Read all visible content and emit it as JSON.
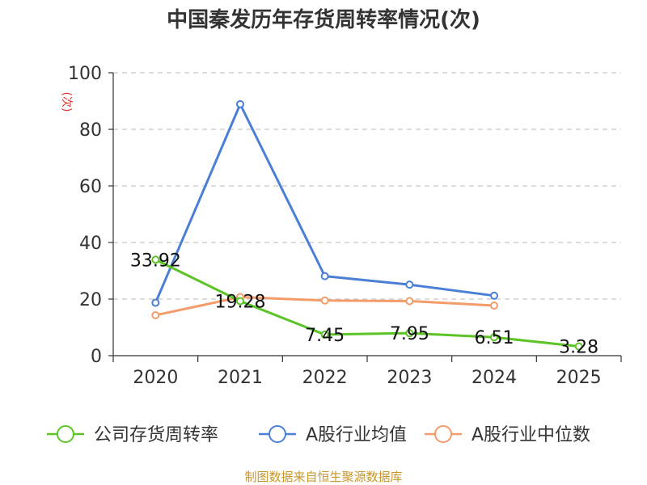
{
  "chart_data": {
    "type": "line",
    "title": "中国秦发历年存货周转率情况(次)",
    "ylabel": "(次)",
    "categories": [
      "2020",
      "2021",
      "2022",
      "2023",
      "2024",
      "2025"
    ],
    "ylim": [
      0,
      100
    ],
    "yticks": [
      0,
      20,
      40,
      60,
      80,
      100
    ],
    "grid": true,
    "legend_position": "bottom",
    "series": [
      {
        "name": "公司存货周转率",
        "color": "#5cc427",
        "values": [
          33.92,
          19.28,
          7.45,
          7.95,
          6.51,
          3.28
        ],
        "labels": [
          "33.92",
          "19.28",
          "7.45",
          "7.95",
          "6.51",
          "3.28"
        ]
      },
      {
        "name": "A股行业均值",
        "color": "#4a7fd6",
        "values": [
          18.7,
          88.9,
          28.1,
          25.1,
          21.2,
          null
        ]
      },
      {
        "name": "A股行业中位数",
        "color": "#f49b6a",
        "values": [
          14.3,
          20.7,
          19.5,
          19.3,
          17.7,
          null
        ]
      }
    ]
  },
  "source": "制图数据来自恒生聚源数据库"
}
